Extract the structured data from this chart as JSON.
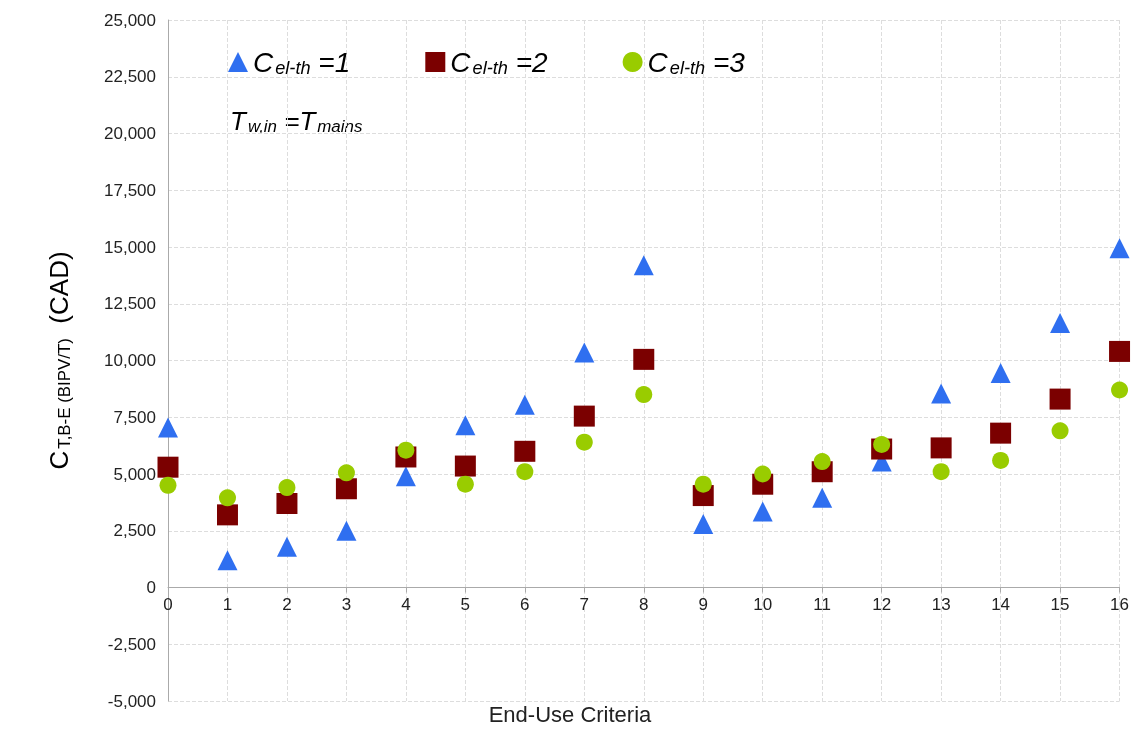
{
  "chart_data": {
    "type": "scatter",
    "xlabel": "End-Use Criteria",
    "ylabel": "C$_{T,B-E (BIPV/T)}$  (CAD)",
    "annotations": [
      "T$_{w,in}$ =T$_{mains}$"
    ],
    "x": [
      0,
      1,
      2,
      3,
      4,
      5,
      6,
      7,
      8,
      9,
      10,
      11,
      12,
      13,
      14,
      15,
      16
    ],
    "series": [
      {
        "name": "C$_{el-th}$ =1",
        "color": "#2f6ff0",
        "marker": "triangle",
        "values": [
          7050,
          1200,
          1800,
          2500,
          4900,
          7150,
          8050,
          10350,
          14200,
          2800,
          3350,
          3950,
          5550,
          8550,
          9450,
          11650,
          14950
        ]
      },
      {
        "name": "C$_{el-th}$ =2",
        "color": "#7b0000",
        "marker": "square",
        "values": [
          5300,
          3200,
          3700,
          4350,
          5750,
          5350,
          6000,
          7550,
          10050,
          4050,
          4550,
          5100,
          6100,
          6150,
          6800,
          8300,
          10400
        ]
      },
      {
        "name": "C$_{el-th}$ =3",
        "color": "#99cc00",
        "marker": "circle",
        "values": [
          4500,
          3950,
          4400,
          5050,
          6050,
          4550,
          5100,
          6400,
          8500,
          4550,
          5000,
          5550,
          6300,
          5100,
          5600,
          6900,
          8700
        ]
      }
    ],
    "xlim": [
      0,
      16
    ],
    "xticks": [
      0,
      1,
      2,
      3,
      4,
      5,
      6,
      7,
      8,
      9,
      10,
      11,
      12,
      13,
      14,
      15,
      16
    ],
    "ylim": [
      -5000,
      25000
    ],
    "yticks": [
      {
        "value": -5000,
        "label": "-5,000"
      },
      {
        "value": -2500,
        "label": "-2,500"
      },
      0,
      {
        "value": 2500,
        "label": "2,500"
      },
      {
        "value": 5000,
        "label": "5,000"
      },
      {
        "value": 7500,
        "label": "7,500"
      },
      {
        "value": 10000,
        "label": "10,000"
      },
      {
        "value": 12500,
        "label": "12,500"
      },
      {
        "value": 15000,
        "label": "15,000"
      },
      {
        "value": 17500,
        "label": "17,500"
      },
      {
        "value": 20000,
        "label": "20,000"
      },
      {
        "value": 22500,
        "label": "22,500"
      },
      {
        "value": 25000,
        "label": "25,000"
      }
    ],
    "grid": true,
    "legend": "top left"
  }
}
